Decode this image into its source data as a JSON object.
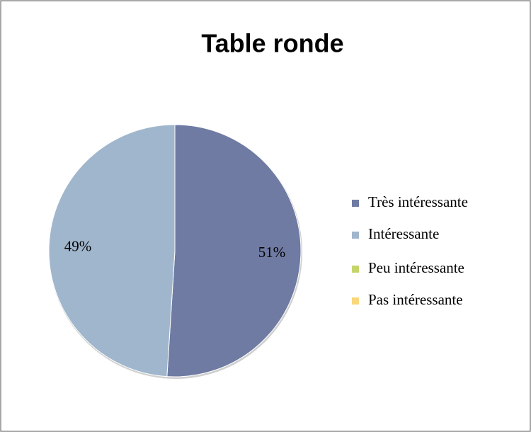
{
  "chart_data": {
    "type": "pie",
    "title": "Table ronde",
    "categories": [
      "Très intéressante",
      "Intéressante",
      "Peu intéressante",
      "Pas intéressante"
    ],
    "values": [
      51,
      49,
      0,
      0
    ],
    "value_labels": [
      "51%",
      "49%",
      null,
      null
    ],
    "colors": [
      "#6f7ba3",
      "#a0b6cc",
      "#c5d56a",
      "#f9d77b"
    ],
    "legend": "right"
  }
}
